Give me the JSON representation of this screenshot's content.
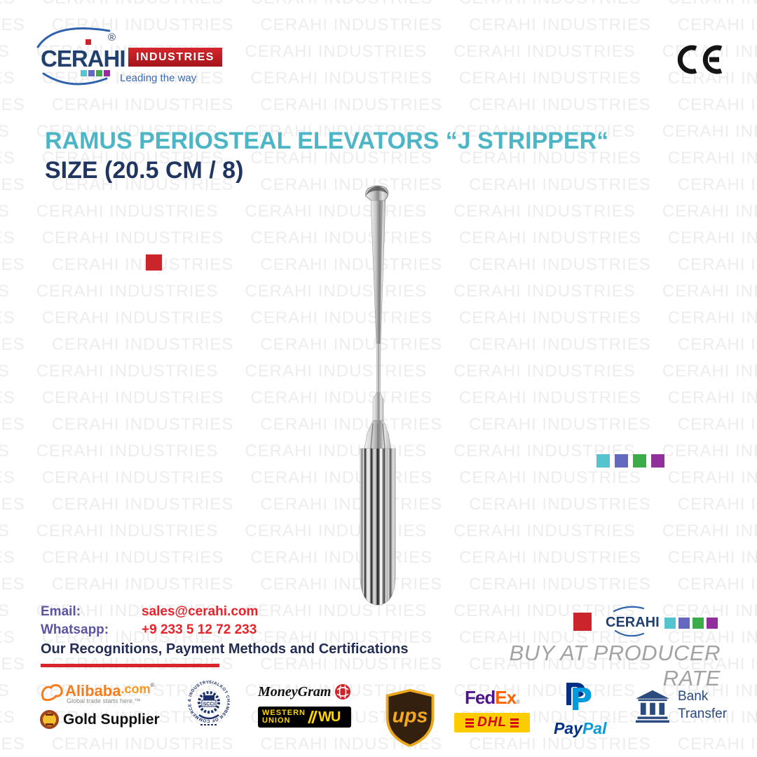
{
  "palette": {
    "squares": [
      "#55c4cf",
      "#6469bf",
      "#3cab4a",
      "#91309c"
    ],
    "accent_red": "#c9252b"
  },
  "watermark": {
    "text": "CERAHI INDUSTRIES"
  },
  "header": {
    "logo": {
      "brand": "CERAHI",
      "industries": "INDUSTRIES",
      "tagline": "Leading the way",
      "registered_mark": "®"
    },
    "ce_mark": "CE"
  },
  "product": {
    "title_line1": "RAMUS PERIOSTEAL ELEVATORS “J STRIPPER“",
    "title_line2": "SIZE (20.5 CM / 8)"
  },
  "contact": {
    "email_label": "Email:",
    "email_value": "sales@cerahi.com",
    "whatsapp_label": "Whatsapp:",
    "whatsapp_value": "+9 233 5 12 72 233",
    "recognitions_heading": "Our Recognitions, Payment Methods and Certifications"
  },
  "footer": {
    "mini_brand": "CERAHI",
    "slogan": "BUY AT PRODUCER RATE",
    "recognitions": {
      "alibaba": {
        "name": "Alibaba",
        "suffix": ".com",
        "registered": "®",
        "tagline": "Global trade starts here.™"
      },
      "gold_supplier": "Gold Supplier",
      "scci_ring_text": "SIALKOT CHAMBER OF COMMERCE & INDUSTRY",
      "scci_center": "SCCI",
      "moneygram": "MoneyGram",
      "western_union": {
        "word1": "WESTERN",
        "word2": "UNION",
        "initials": "WU"
      },
      "ups": "ups",
      "fedex": {
        "part1": "Fed",
        "part2": "Ex",
        "registered": "®"
      },
      "dhl": "DHL",
      "paypal": {
        "part1": "Pay",
        "part2": "Pal"
      },
      "bank_transfer": {
        "word1": "Bank",
        "word2": "Transfer"
      }
    }
  }
}
